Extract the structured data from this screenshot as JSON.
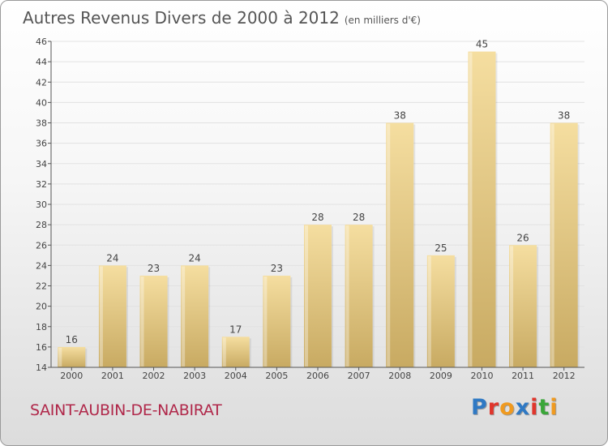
{
  "title": "Autres Revenus Divers de 2000 à 2012",
  "subtitle": "(en milliers d'€)",
  "commune": "SAINT-AUBIN-DE-NABIRAT",
  "logo": {
    "text": "Proxiti",
    "colors": [
      "#2f79c4",
      "#e0362c",
      "#f09a1f",
      "#2f79c4",
      "#e0362c",
      "#3aa639",
      "#f09a1f"
    ]
  },
  "colors": {
    "bar_light": "#f5dea0",
    "bar_dark": "#c8aa62",
    "axis": "#555555",
    "grid": "#e2e2e2"
  },
  "chart_data": {
    "type": "bar",
    "categories": [
      "2000",
      "2001",
      "2002",
      "2003",
      "2004",
      "2005",
      "2006",
      "2007",
      "2008",
      "2009",
      "2010",
      "2011",
      "2012"
    ],
    "values": [
      16,
      24,
      23,
      24,
      17,
      23,
      28,
      28,
      38,
      25,
      45,
      26,
      38
    ],
    "ylim": [
      14,
      46
    ],
    "yticks": [
      14,
      16,
      18,
      20,
      22,
      24,
      26,
      28,
      30,
      32,
      34,
      36,
      38,
      40,
      42,
      44,
      46
    ],
    "grid": true,
    "data_labels": true
  }
}
